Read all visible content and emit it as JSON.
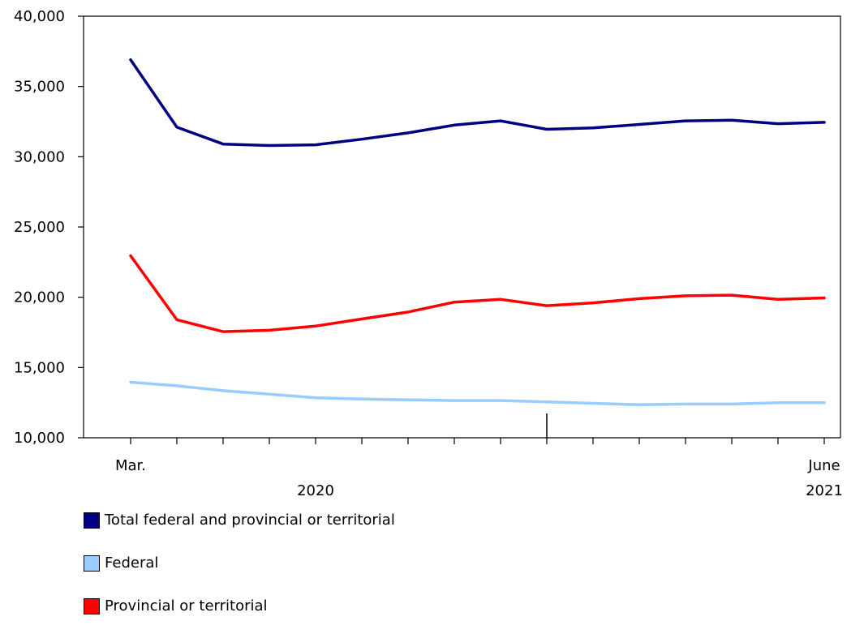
{
  "chart_data": {
    "type": "line",
    "title": "",
    "xlabel": "",
    "ylabel": "",
    "ylim": [
      10000,
      40000
    ],
    "y_ticks": [
      10000,
      15000,
      20000,
      25000,
      30000,
      35000,
      40000
    ],
    "y_tick_labels": [
      "10,000",
      "15,000",
      "20,000",
      "25,000",
      "30,000",
      "35,000",
      "40,000"
    ],
    "x": [
      "2020-03",
      "2020-04",
      "2020-05",
      "2020-06",
      "2020-07",
      "2020-08",
      "2020-09",
      "2020-10",
      "2020-11",
      "2020-12",
      "2021-01",
      "2021-02",
      "2021-03",
      "2021-04",
      "2021-05",
      "2021-06"
    ],
    "x_tick_labels": [
      {
        "text": "Mar.",
        "month_index": 0
      },
      {
        "text": "June",
        "month_index": 15
      }
    ],
    "year_labels": [
      {
        "text": "2020",
        "month_index": 4
      },
      {
        "text": "2021",
        "month_index": 15
      }
    ],
    "year_divider_after_index": 9,
    "grid": false,
    "legend_position": "bottom-left",
    "series": [
      {
        "name": "Total federal and provincial or territorial",
        "color": "#000080",
        "values": [
          36900,
          32100,
          30900,
          30800,
          30850,
          31250,
          31700,
          32250,
          32550,
          31950,
          32050,
          32300,
          32550,
          32600,
          32350,
          32450
        ]
      },
      {
        "name": "Federal",
        "color": "#99ccff",
        "values": [
          13950,
          13700,
          13350,
          13100,
          12850,
          12750,
          12700,
          12650,
          12650,
          12550,
          12450,
          12350,
          12400,
          12400,
          12500,
          12500
        ]
      },
      {
        "name": "Provincial or territorial",
        "color": "#ff0000",
        "values": [
          22950,
          18400,
          17550,
          17650,
          17950,
          18450,
          18950,
          19650,
          19850,
          19400,
          19600,
          19900,
          20100,
          20150,
          19850,
          19950
        ]
      }
    ]
  }
}
